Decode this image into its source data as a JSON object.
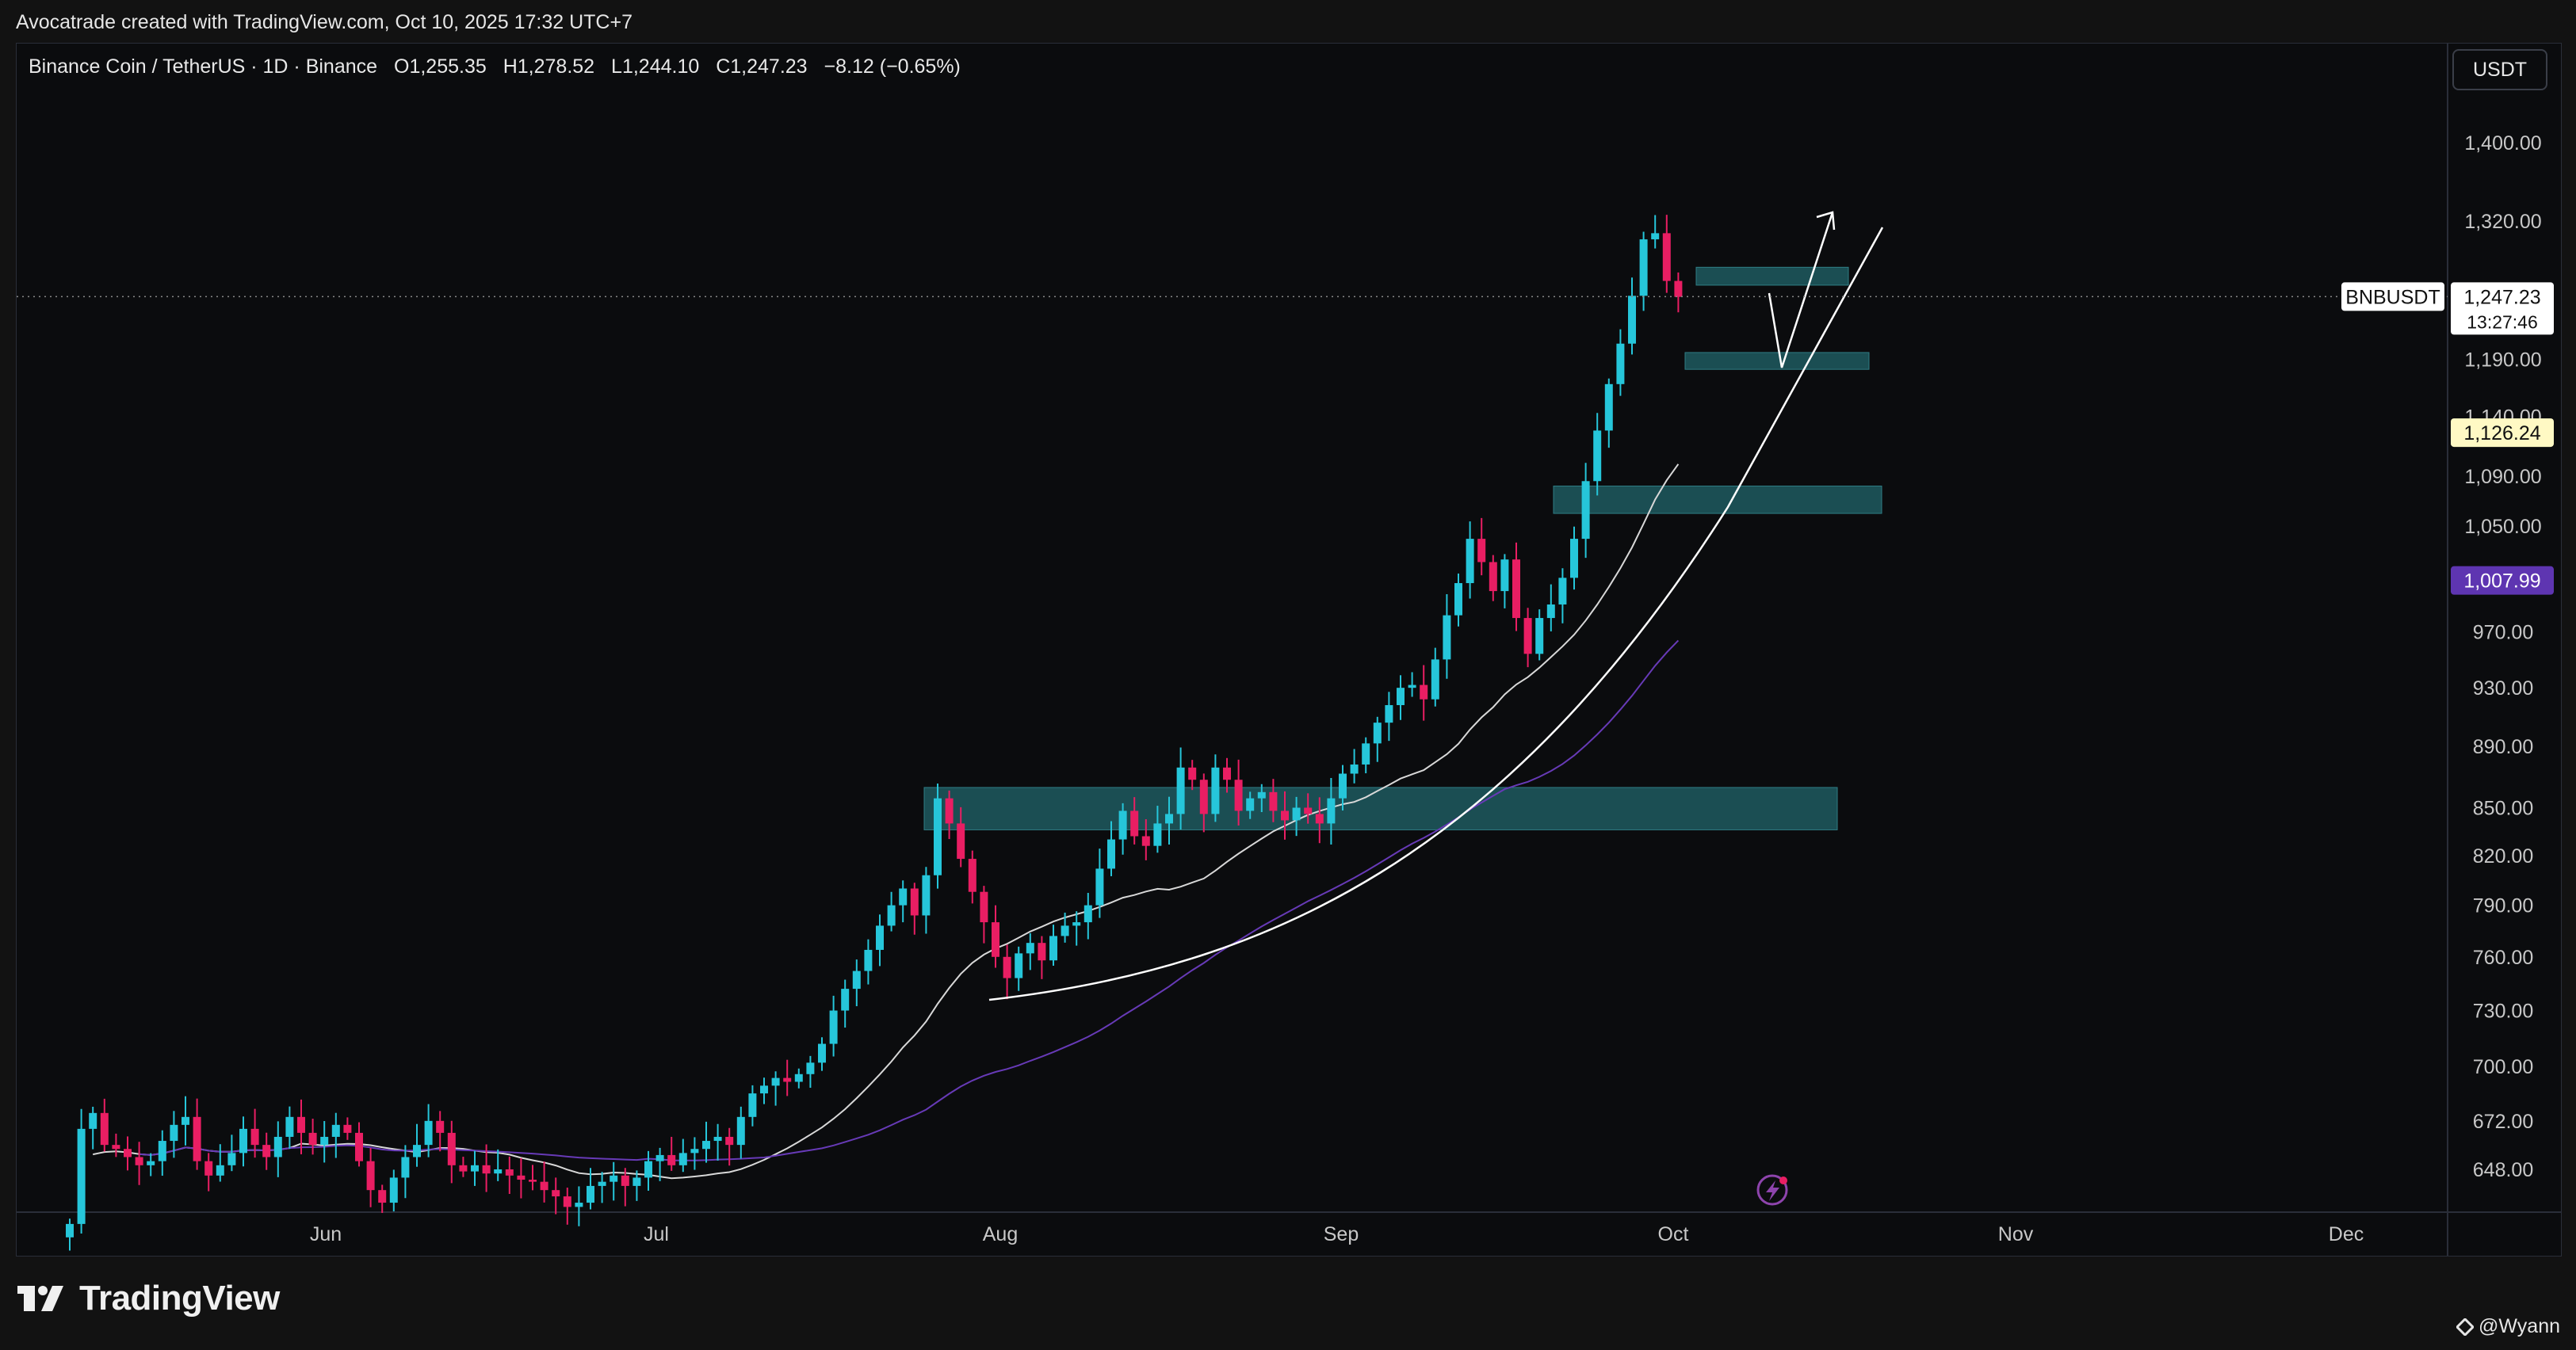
{
  "header": {
    "attribution": "Avocatrade created with TradingView.com, Oct 10, 2025 17:32 UTC+7"
  },
  "legend": {
    "symbol": "Binance Coin / TetherUS · 1D · Binance",
    "open": "O1,255.35",
    "high": "H1,278.52",
    "low": "L1,244.10",
    "close": "C1,247.23",
    "change": "−8.12 (−0.65%)"
  },
  "currency_button": "USDT",
  "footer": {
    "brand": "TradingView",
    "author": "@Wyann"
  },
  "colors": {
    "up": "#26c6da",
    "down": "#e91e63",
    "ma_fast": "#d8d8d8",
    "ma_slow": "#673ab7",
    "zone": "#1e5a5f",
    "price_label_bg": "#ffffff",
    "ma_fast_label_bg": "#fff9c4",
    "ma_slow_label_bg": "#5e35b1"
  },
  "chart_data": {
    "type": "candlestick",
    "y_scale": "log",
    "ylim": [
      620,
      1440
    ],
    "y_ticks": [
      "1,400.00",
      "1,320.00",
      "1,190.00",
      "1,140.00",
      "1,090.00",
      "1,050.00",
      "970.00",
      "930.00",
      "890.00",
      "850.00",
      "820.00",
      "790.00",
      "760.00",
      "730.00",
      "700.00",
      "672.00",
      "648.00"
    ],
    "x_ticks": [
      "Jun",
      "Jul",
      "Aug",
      "Sep",
      "Oct",
      "Nov",
      "Dec"
    ],
    "price_label": {
      "symbol": "BNBUSDT",
      "value": "1,247.23",
      "countdown": "13:27:46"
    },
    "ma_labels": {
      "fast": "1,126.24",
      "slow": "1,007.99"
    },
    "closes": [
      622,
      668,
      676,
      660,
      658,
      654,
      650,
      652,
      662,
      670,
      674,
      652,
      645,
      650,
      656,
      668,
      660,
      654,
      664,
      674,
      666,
      660,
      664,
      670,
      666,
      652,
      638,
      632,
      644,
      654,
      660,
      672,
      666,
      650,
      647,
      650,
      646,
      648,
      645,
      643,
      642,
      638,
      635,
      630,
      632,
      640,
      642,
      645,
      640,
      644,
      652,
      655,
      650,
      656,
      658,
      662,
      664,
      660,
      674,
      686,
      690,
      694,
      692,
      696,
      702,
      712,
      730,
      742,
      752,
      764,
      778,
      790,
      800,
      784,
      808,
      856,
      840,
      818,
      798,
      780,
      760,
      748,
      762,
      768,
      758,
      772,
      778,
      780,
      790,
      812,
      830,
      848,
      832,
      826,
      840,
      846,
      876,
      868,
      846,
      876,
      868,
      848,
      856,
      860,
      848,
      842,
      850,
      846,
      840,
      856,
      872,
      878,
      892,
      906,
      918,
      930,
      932,
      922,
      950,
      982,
      1006,
      1040,
      1022,
      1000,
      1024,
      980,
      954,
      980,
      990,
      1010,
      1040,
      1086,
      1128,
      1168,
      1204,
      1248,
      1302,
      1308,
      1262,
      1247
    ]
  },
  "annotations": {
    "zones": [
      "zone-850",
      "zone-1070",
      "zone-1190",
      "zone-1250"
    ],
    "curve": "parabolic-support-curve",
    "path": "projected-path-arrow"
  }
}
